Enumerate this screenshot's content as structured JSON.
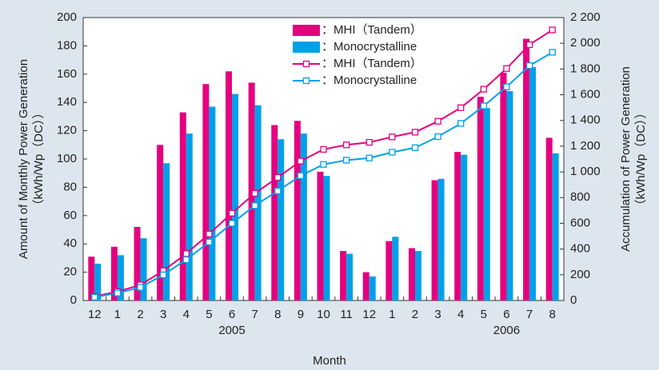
{
  "chart_data": {
    "type": "bar",
    "categories": [
      "12",
      "1",
      "2",
      "3",
      "4",
      "5",
      "6",
      "7",
      "8",
      "9",
      "10",
      "11",
      "12",
      "1",
      "2",
      "3",
      "4",
      "5",
      "6",
      "7",
      "8"
    ],
    "x_groups": [
      "2005",
      "2006"
    ],
    "xlabel": "Month",
    "ylabel": [
      "Amount of Monthly Power Generation",
      "（kWh/Wp（DC））"
    ],
    "y2label": [
      "Accumulation of Power Generation",
      "（kWh/Wp（DC））"
    ],
    "ylim": [
      0,
      200
    ],
    "yticks": [
      0,
      20,
      40,
      60,
      80,
      100,
      120,
      140,
      160,
      180,
      200
    ],
    "y2lim": [
      0,
      2200
    ],
    "y2ticks": [
      0,
      200,
      400,
      600,
      800,
      {
        "value": 1000,
        "label": "1 000"
      },
      {
        "value": 1200,
        "label": "1 200"
      },
      {
        "value": 1400,
        "label": "1 400"
      },
      {
        "value": 1600,
        "label": "1 600"
      },
      {
        "value": 1800,
        "label": "1 800"
      },
      {
        "value": 2000,
        "label": "2 000"
      },
      {
        "value": 2200,
        "label": "2 200"
      }
    ],
    "series": [
      {
        "name": "：MHI（Tandem）",
        "type": "bar",
        "color": "#e4007f",
        "values": [
          31,
          38,
          52,
          110,
          133,
          153,
          162,
          154,
          124,
          127,
          91,
          35,
          20,
          42,
          37,
          85,
          105,
          144,
          161,
          185,
          115
        ]
      },
      {
        "name": "：Monocrystalline",
        "type": "bar",
        "color": "#00a0e9",
        "values": [
          26,
          32,
          44,
          97,
          118,
          137,
          146,
          138,
          114,
          118,
          88,
          33,
          17,
          45,
          35,
          86,
          103,
          136,
          148,
          165,
          104
        ]
      },
      {
        "name": "：MHI（Tandem）",
        "type": "line",
        "axis": "y2",
        "color": "#e4007f",
        "values": [
          31,
          69,
          121,
          231,
          364,
          517,
          679,
          833,
          957,
          1084,
          1175,
          1210,
          1230,
          1272,
          1309,
          1394,
          1499,
          1643,
          1804,
          1989,
          2104
        ]
      },
      {
        "name": "：Monocrystalline",
        "type": "line",
        "axis": "y2",
        "color": "#00a0e9",
        "values": [
          26,
          58,
          102,
          199,
          317,
          454,
          600,
          738,
          852,
          970,
          1058,
          1091,
          1108,
          1153,
          1188,
          1274,
          1377,
          1513,
          1661,
          1826,
          1930
        ]
      }
    ]
  }
}
